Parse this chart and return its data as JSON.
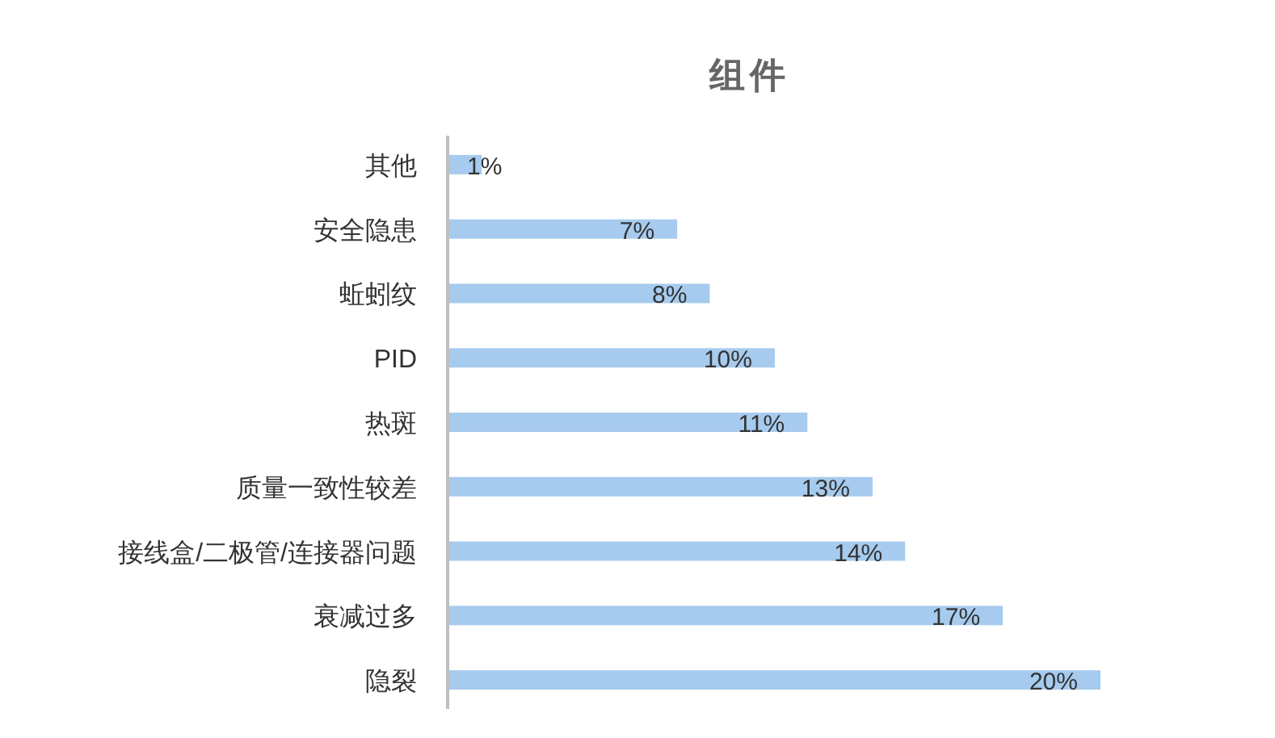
{
  "chart_data": {
    "type": "bar",
    "orientation": "horizontal",
    "title": "组件",
    "categories": [
      "其他",
      "安全隐患",
      "蚯蚓纹",
      "PID",
      "热斑",
      "质量一致性较差",
      "接线盒/二极管/连接器问题",
      "衰减过多",
      "隐裂"
    ],
    "values": [
      1,
      7,
      8,
      10,
      11,
      13,
      14,
      17,
      20
    ],
    "value_labels": [
      "1%",
      "7%",
      "8%",
      "10%",
      "11%",
      "13%",
      "14%",
      "17%",
      "20%"
    ],
    "color": "#a6cbee"
  }
}
